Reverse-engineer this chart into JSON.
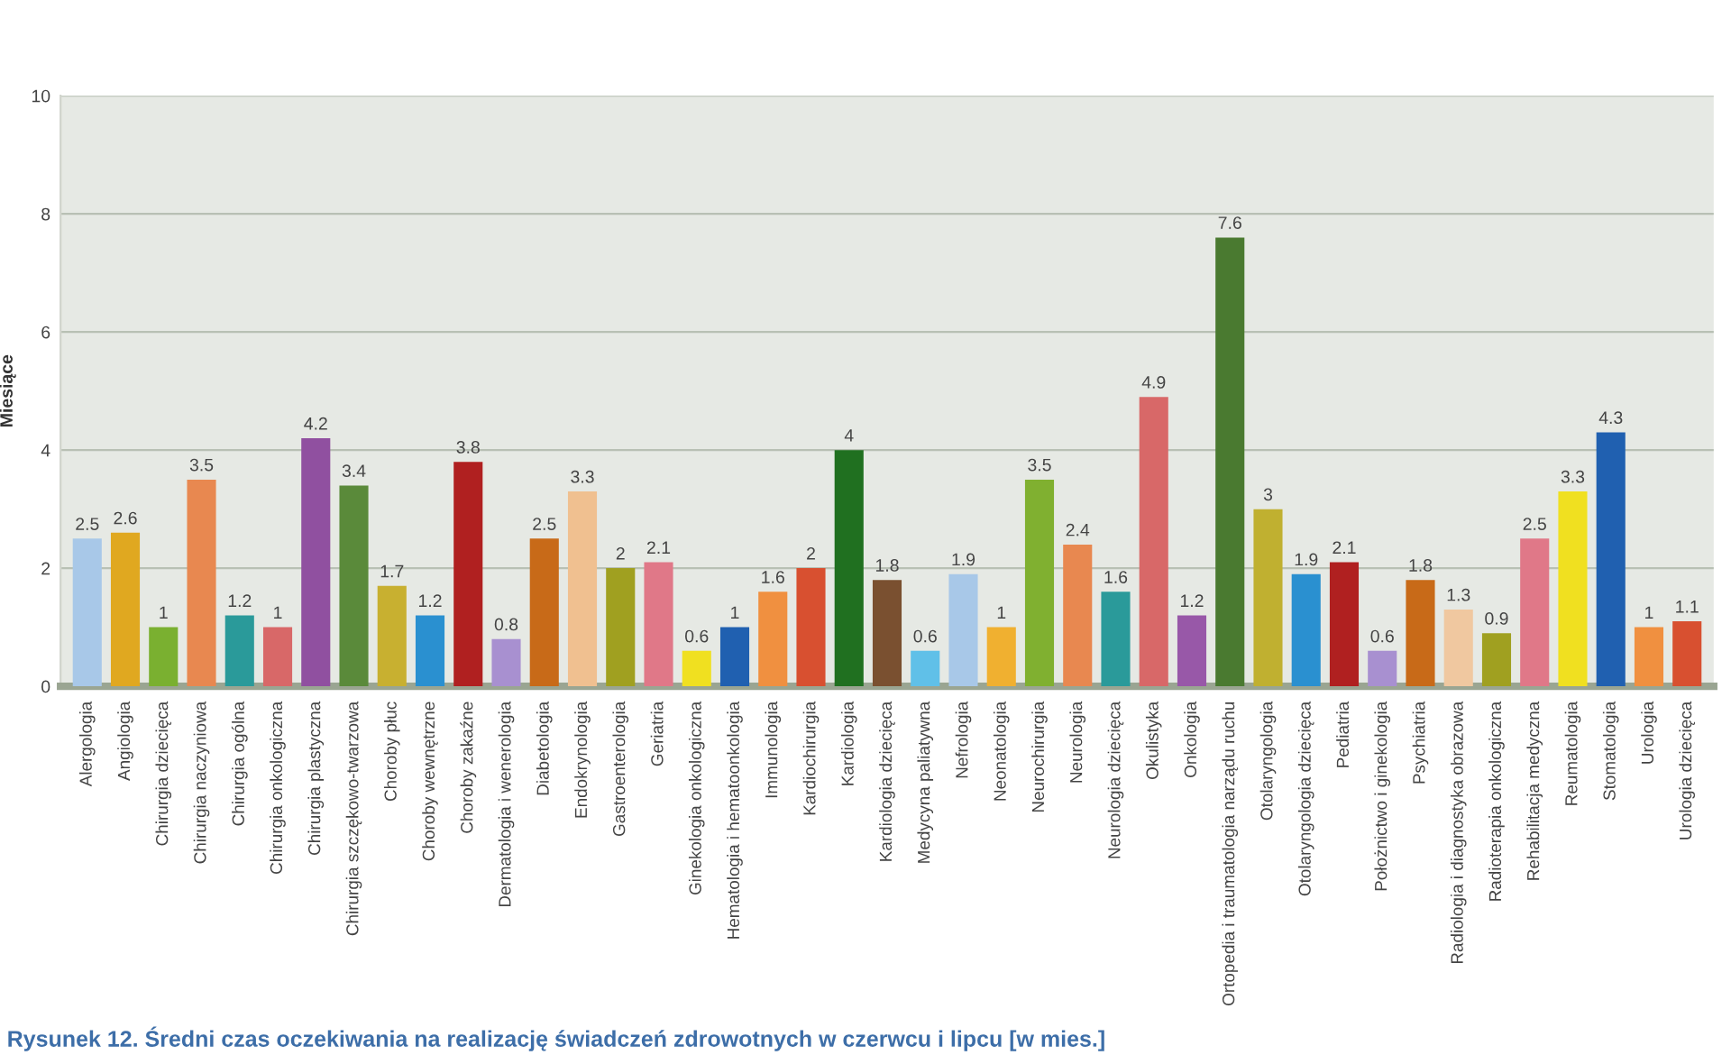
{
  "chart_data": {
    "type": "bar",
    "ylabel": "Miesiące",
    "annotations": [
      "Rysunek 12. Średni czas oczekiwania na realizację świadczeń zdrowotnych w czerwcu i lipcu [w mies.]"
    ],
    "categories": [
      "Alergologia",
      "Angiologia",
      "Chirurgia dziecięca",
      "Chirurgia naczyniowa",
      "Chirurgia ogólna",
      "Chirurgia onkologiczna",
      "Chirurgia plastyczna",
      "Chirurgia szczękowo-twarzowa",
      "Choroby płuc",
      "Choroby wewnętrzne",
      "Choroby zakaźne",
      "Dermatologia i wenerologia",
      "Diabetologia",
      "Endokrynologia",
      "Gastroenterologia",
      "Geriatria",
      "Ginekologia onkologiczna",
      "Hematologia i hematoonkologia",
      "Immunologia",
      "Kardiochirurgia",
      "Kardiologia",
      "Kardiologia dziecięca",
      "Medycyna paliatywna",
      "Nefrologia",
      "Neonatologia",
      "Neurochirurgia",
      "Neurologia",
      "Neurologia dziecięca",
      "Okulistyka",
      "Onkologia",
      "Ortopedia i traumatologia narządu ruchu",
      "Otolaryngologia",
      "Otolaryngologia dziecięca",
      "Pediatria",
      "Położnictwo i ginekologia",
      "Psychiatria",
      "Radiologia i diagnostyka obrazowa",
      "Radioterapia onkologiczna",
      "Rehabilitacja medyczna",
      "Reumatologia",
      "Stomatologia",
      "Urologia",
      "Urologia dziecięca"
    ],
    "values": [
      2.5,
      2.6,
      1,
      3.5,
      1.2,
      1,
      4.2,
      3.4,
      1.7,
      1.2,
      3.8,
      0.8,
      2.5,
      3.3,
      2,
      2.1,
      0.6,
      1,
      1.6,
      2,
      4,
      1.8,
      0.6,
      1.9,
      1,
      3.5,
      2.4,
      1.6,
      4.9,
      1.2,
      7.6,
      3,
      1.9,
      2.1,
      0.6,
      1.8,
      1.3,
      0.9,
      2.5,
      3.3,
      4.3,
      1,
      1.1
    ],
    "colors": [
      "#a8c8e8",
      "#e0a820",
      "#7ab030",
      "#e88850",
      "#2a9a9a",
      "#d86868",
      "#9050a0",
      "#5a8a3a",
      "#c8b030",
      "#2a90d0",
      "#b02020",
      "#a890d0",
      "#c86a18",
      "#f0c090",
      "#a0a020",
      "#e07888",
      "#f0e020",
      "#2060b0",
      "#f09040",
      "#d85030",
      "#207020",
      "#7a5030",
      "#60c0e8",
      "#a8c8e8",
      "#f0b030",
      "#80b030",
      "#e88850",
      "#2a9a9a",
      "#d86868",
      "#9858a8",
      "#4a7a30",
      "#c0b030",
      "#2a90d0",
      "#b02020",
      "#a890d0",
      "#c86a18",
      "#f0c8a0",
      "#a0a020",
      "#e07888",
      "#f0e020",
      "#2060b0",
      "#f09040",
      "#d85030"
    ],
    "ylim": [
      0,
      10
    ],
    "yticks": [
      0,
      2,
      4,
      6,
      8,
      10
    ],
    "grid": "y",
    "data_labels": true
  }
}
